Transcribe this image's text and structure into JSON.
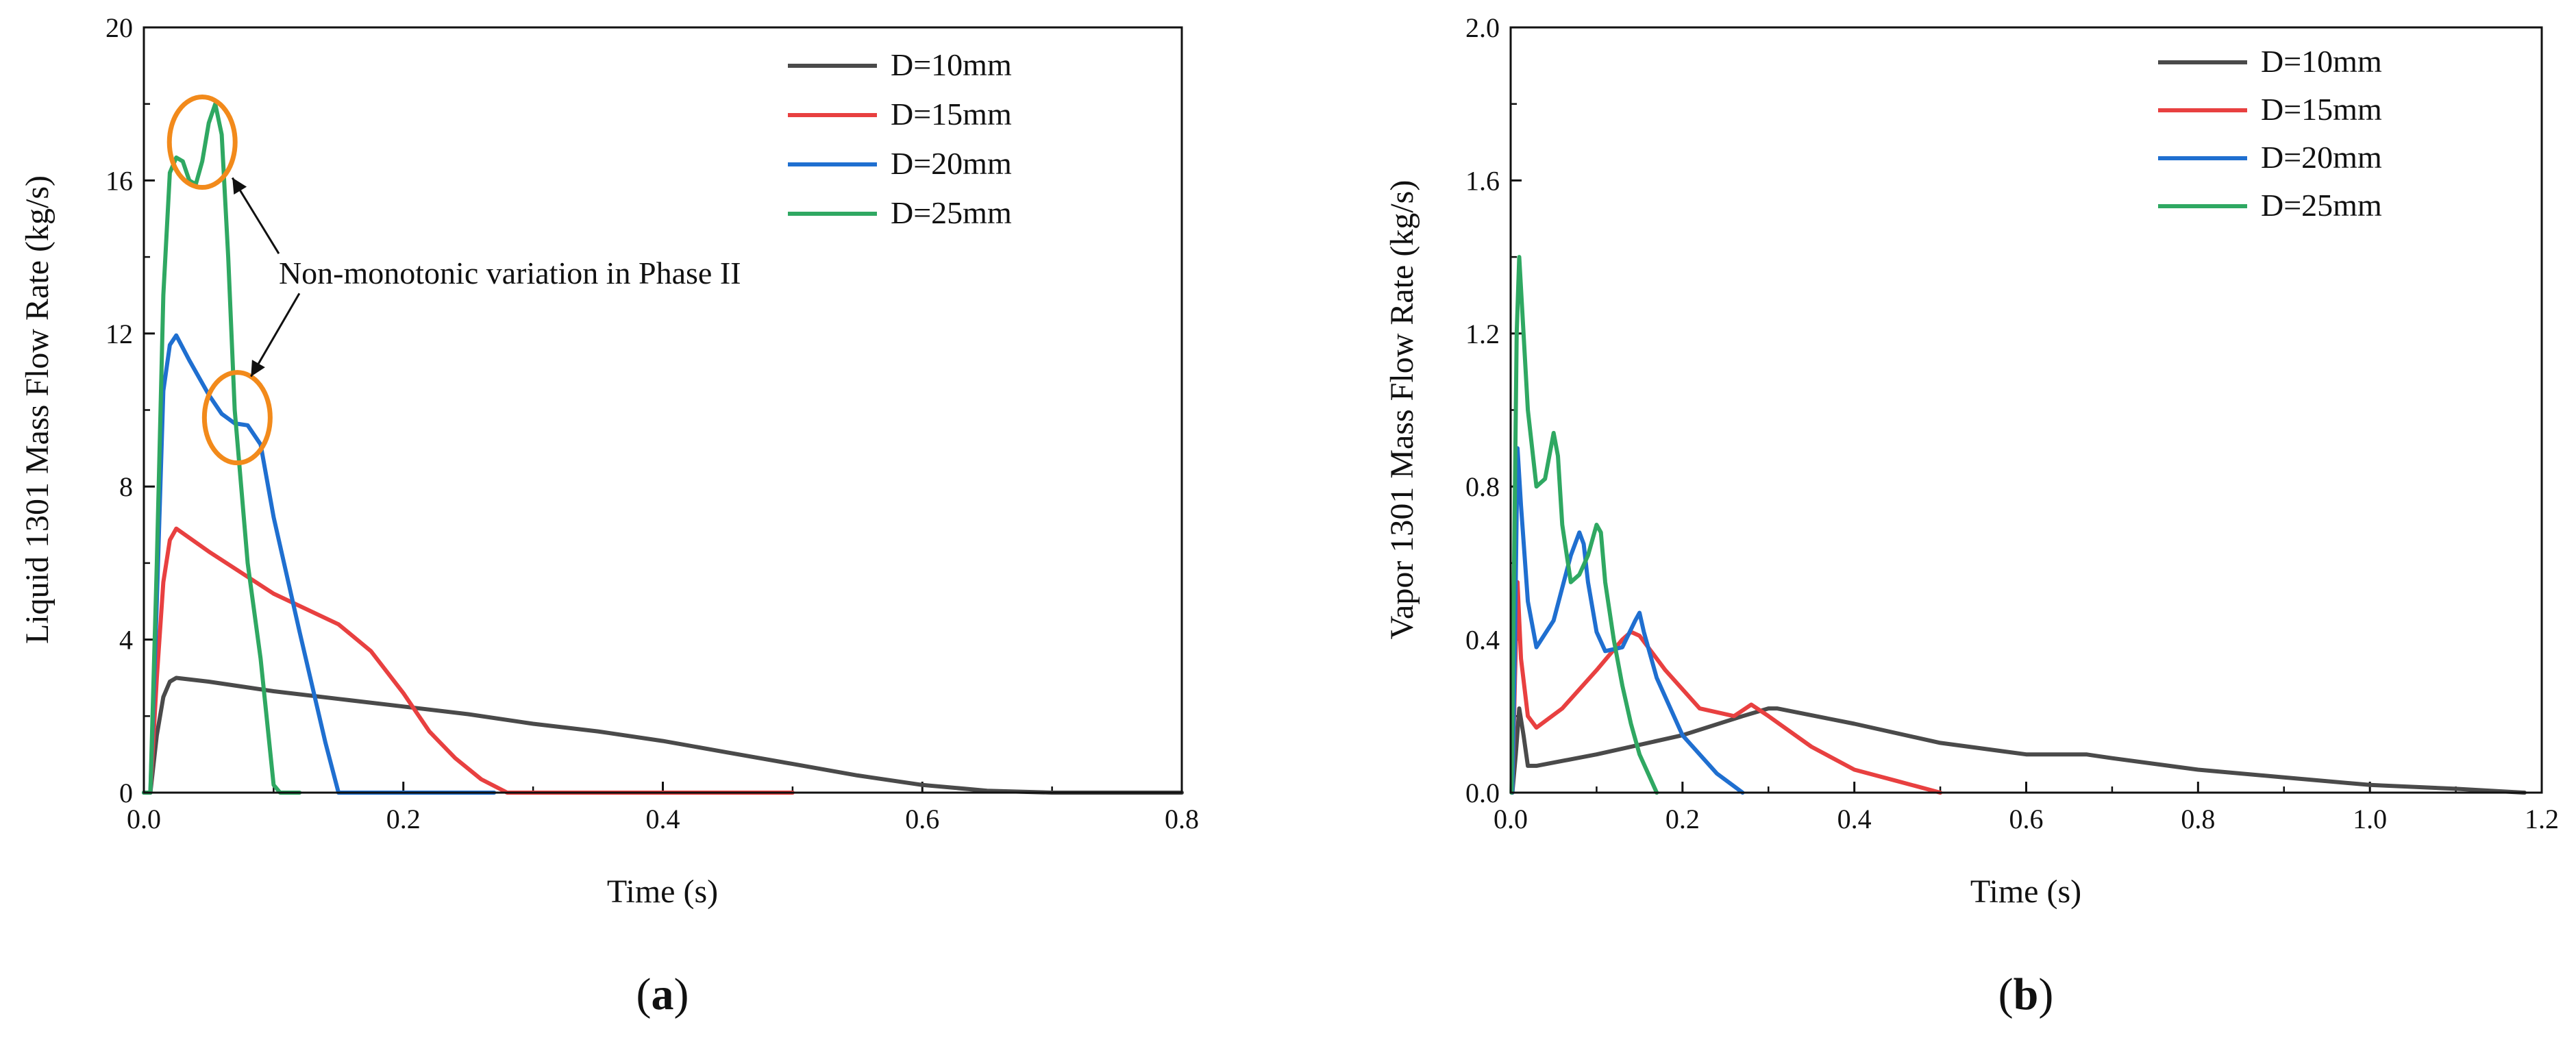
{
  "series_colors": {
    "D=10mm": "#4a4a4a",
    "D=15mm": "#e84040",
    "D=20mm": "#1f6fd0",
    "D=25mm": "#2fa862"
  },
  "highlight_color": "#f28a1b",
  "chart_data": [
    {
      "id": "a",
      "type": "line",
      "panel_label": {
        "open": "(",
        "letter": "a",
        "close": ")"
      },
      "xlabel": "Time (s)",
      "ylabel": "Liquid 1301 Mass Flow Rate (kg/s)",
      "xlim": [
        0,
        0.8
      ],
      "ylim": [
        0,
        20
      ],
      "xticks": [
        0.0,
        0.2,
        0.4,
        0.6,
        0.8
      ],
      "xtick_labels": [
        "0.0",
        "0.2",
        "0.4",
        "0.6",
        "0.8"
      ],
      "yticks": [
        0,
        4,
        8,
        12,
        16,
        20
      ],
      "ytick_labels": [
        "0",
        "4",
        "8",
        "12",
        "16",
        "20"
      ],
      "legend_position": "top-right",
      "series": [
        {
          "name": "D=10mm",
          "x": [
            0,
            0.005,
            0.01,
            0.015,
            0.02,
            0.025,
            0.05,
            0.1,
            0.15,
            0.2,
            0.25,
            0.3,
            0.35,
            0.4,
            0.45,
            0.5,
            0.55,
            0.6,
            0.65,
            0.7,
            0.8
          ],
          "y": [
            0,
            0,
            1.5,
            2.5,
            2.9,
            3.0,
            2.9,
            2.65,
            2.45,
            2.25,
            2.05,
            1.8,
            1.6,
            1.35,
            1.05,
            0.75,
            0.45,
            0.2,
            0.05,
            0.0,
            0.0
          ]
        },
        {
          "name": "D=15mm",
          "x": [
            0,
            0.005,
            0.01,
            0.015,
            0.02,
            0.025,
            0.05,
            0.1,
            0.15,
            0.175,
            0.2,
            0.22,
            0.24,
            0.26,
            0.28,
            0.3,
            0.4,
            0.5
          ],
          "y": [
            0,
            0,
            3.0,
            5.5,
            6.6,
            6.9,
            6.3,
            5.2,
            4.4,
            3.7,
            2.6,
            1.6,
            0.9,
            0.35,
            0.0,
            0.0,
            0.0,
            0.0
          ]
        },
        {
          "name": "D=20mm",
          "x": [
            0,
            0.005,
            0.01,
            0.015,
            0.02,
            0.025,
            0.035,
            0.05,
            0.06,
            0.07,
            0.08,
            0.09,
            0.1,
            0.12,
            0.14,
            0.15,
            0.2,
            0.27
          ],
          "y": [
            0,
            0,
            5.0,
            10.5,
            11.7,
            11.95,
            11.3,
            10.4,
            9.9,
            9.65,
            9.6,
            9.1,
            7.2,
            4.2,
            1.3,
            0.0,
            0.0,
            0.0
          ]
        },
        {
          "name": "D=25mm",
          "x": [
            0,
            0.005,
            0.01,
            0.015,
            0.02,
            0.025,
            0.03,
            0.035,
            0.04,
            0.045,
            0.05,
            0.055,
            0.06,
            0.065,
            0.07,
            0.08,
            0.09,
            0.1,
            0.105,
            0.12
          ],
          "y": [
            0,
            0,
            6.0,
            13.0,
            16.2,
            16.6,
            16.5,
            16.0,
            15.9,
            16.5,
            17.5,
            18.0,
            17.2,
            14.0,
            10.0,
            6.0,
            3.5,
            0.2,
            0.0,
            0.0
          ]
        }
      ],
      "annotations": [
        {
          "text": "Non-monotonic variation in Phase II",
          "targets": [
            {
              "x": 0.045,
              "y": 17.0
            },
            {
              "x": 0.072,
              "y": 9.8
            }
          ]
        }
      ]
    },
    {
      "id": "b",
      "type": "line",
      "panel_label": {
        "open": "(",
        "letter": "b",
        "close": ")"
      },
      "xlabel": "Time (s)",
      "ylabel": "Vapor 1301 Mass Flow Rate (kg/s)",
      "xlim": [
        0,
        1.2
      ],
      "ylim": [
        0,
        2.0
      ],
      "xticks": [
        0.0,
        0.2,
        0.4,
        0.6,
        0.8,
        1.0,
        1.2
      ],
      "xtick_labels": [
        "0.0",
        "0.2",
        "0.4",
        "0.6",
        "0.8",
        "1.0",
        "1.2"
      ],
      "yticks": [
        0.0,
        0.4,
        0.8,
        1.2,
        1.6,
        2.0
      ],
      "ytick_labels": [
        "0.0",
        "0.4",
        "0.8",
        "1.2",
        "1.6",
        "2.0"
      ],
      "legend_position": "top-right",
      "series": [
        {
          "name": "D=10mm",
          "x": [
            0.002,
            0.006,
            0.01,
            0.015,
            0.02,
            0.03,
            0.1,
            0.2,
            0.27,
            0.3,
            0.31,
            0.4,
            0.5,
            0.6,
            0.67,
            0.7,
            0.8,
            0.9,
            1.0,
            1.1,
            1.18
          ],
          "y": [
            0.0,
            0.1,
            0.22,
            0.15,
            0.07,
            0.07,
            0.1,
            0.15,
            0.2,
            0.22,
            0.22,
            0.18,
            0.13,
            0.1,
            0.1,
            0.09,
            0.06,
            0.04,
            0.02,
            0.01,
            0.0
          ]
        },
        {
          "name": "D=15mm",
          "x": [
            0.002,
            0.005,
            0.008,
            0.012,
            0.02,
            0.03,
            0.06,
            0.1,
            0.13,
            0.14,
            0.15,
            0.18,
            0.22,
            0.26,
            0.28,
            0.3,
            0.35,
            0.4,
            0.45,
            0.5
          ],
          "y": [
            0.0,
            0.3,
            0.55,
            0.35,
            0.2,
            0.17,
            0.22,
            0.32,
            0.4,
            0.42,
            0.41,
            0.32,
            0.22,
            0.2,
            0.23,
            0.2,
            0.12,
            0.06,
            0.03,
            0.0
          ]
        },
        {
          "name": "D=20mm",
          "x": [
            0.002,
            0.005,
            0.008,
            0.012,
            0.02,
            0.03,
            0.05,
            0.07,
            0.08,
            0.085,
            0.09,
            0.1,
            0.11,
            0.13,
            0.145,
            0.15,
            0.155,
            0.17,
            0.2,
            0.24,
            0.27
          ],
          "y": [
            0.0,
            0.4,
            0.9,
            0.75,
            0.5,
            0.38,
            0.45,
            0.62,
            0.68,
            0.65,
            0.55,
            0.42,
            0.37,
            0.38,
            0.45,
            0.47,
            0.42,
            0.3,
            0.15,
            0.05,
            0.0
          ]
        },
        {
          "name": "D=25mm",
          "x": [
            0.001,
            0.004,
            0.007,
            0.01,
            0.015,
            0.02,
            0.03,
            0.04,
            0.05,
            0.055,
            0.06,
            0.07,
            0.08,
            0.09,
            0.1,
            0.105,
            0.11,
            0.12,
            0.13,
            0.14,
            0.15,
            0.16,
            0.17
          ],
          "y": [
            0.0,
            0.6,
            1.2,
            1.4,
            1.2,
            1.0,
            0.8,
            0.82,
            0.94,
            0.88,
            0.7,
            0.55,
            0.57,
            0.62,
            0.7,
            0.68,
            0.55,
            0.4,
            0.28,
            0.18,
            0.1,
            0.05,
            0.0
          ]
        }
      ]
    }
  ]
}
